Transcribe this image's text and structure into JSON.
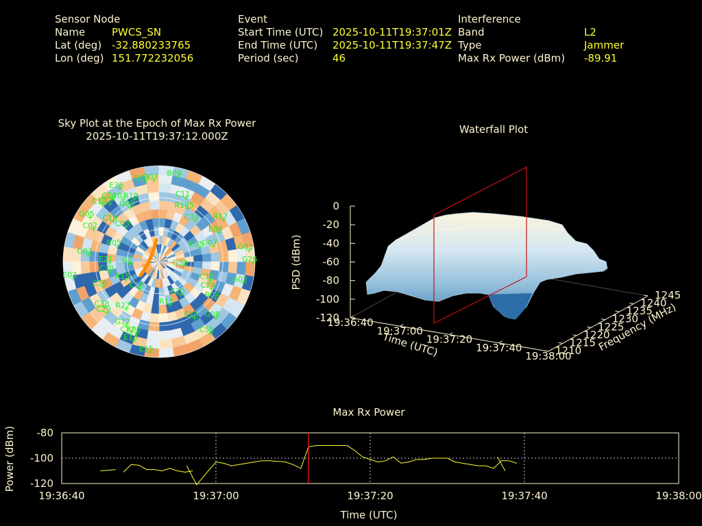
{
  "header": {
    "sensor": {
      "heading": "Sensor Node",
      "rows": [
        {
          "label": "Name",
          "value": "PWCS_SN"
        },
        {
          "label": "Lat (deg)",
          "value": "-32.880233765"
        },
        {
          "label": "Lon (deg)",
          "value": "151.772232056"
        }
      ]
    },
    "event": {
      "heading": "Event",
      "rows": [
        {
          "label": "Start Time (UTC)",
          "value": "2025-10-11T19:37:01Z"
        },
        {
          "label": "End Time (UTC)",
          "value": "2025-10-11T19:37:47Z"
        },
        {
          "label": "Period (sec)",
          "value": "46"
        }
      ]
    },
    "interference": {
      "heading": "Interference",
      "rows": [
        {
          "label": "Band",
          "value": "L2"
        },
        {
          "label": "Type",
          "value": "Jammer"
        },
        {
          "label": "Max Rx Power (dBm)",
          "value": "-89.91"
        }
      ]
    }
  },
  "chart_data": [
    {
      "type": "scatter",
      "title": "Sky Plot at the Epoch of Max Rx Power",
      "subtitle": "2025-10-11T19:37:12.000Z",
      "satellites": [
        {
          "name": "E36",
          "az": -30,
          "el": 10
        },
        {
          "name": "D03",
          "az": -12,
          "el": 12
        },
        {
          "name": "G03",
          "az": -6,
          "el": 12
        },
        {
          "name": "B09",
          "az": 10,
          "el": 8
        },
        {
          "name": "C10",
          "az": -46,
          "el": 12
        },
        {
          "name": "C04",
          "az": -38,
          "el": 14
        },
        {
          "name": "C07",
          "az": -42,
          "el": 16
        },
        {
          "name": "C01",
          "az": -32,
          "el": 20
        },
        {
          "name": "R19",
          "az": -24,
          "el": 25
        },
        {
          "name": "G09",
          "az": -30,
          "el": 30
        },
        {
          "name": "C11",
          "az": 20,
          "el": 25
        },
        {
          "name": "R195",
          "az": 25,
          "el": 34
        },
        {
          "name": "C34",
          "az": 38,
          "el": 40
        },
        {
          "name": "G05",
          "az": -58,
          "el": 10
        },
        {
          "name": "C03",
          "az": -46,
          "el": 42
        },
        {
          "name": "C19",
          "az": -50,
          "el": 30
        },
        {
          "name": "R17",
          "az": 55,
          "el": 20
        },
        {
          "name": "E04",
          "az": 62,
          "el": 30
        },
        {
          "name": "C02",
          "az": -64,
          "el": 18
        },
        {
          "name": "R05",
          "az": -70,
          "el": 45
        },
        {
          "name": "E05",
          "az": 68,
          "el": 52
        },
        {
          "name": "G07",
          "az": 72,
          "el": 40
        },
        {
          "name": "G01",
          "az": 82,
          "el": 8
        },
        {
          "name": "G03",
          "az": -84,
          "el": 20
        },
        {
          "name": "E21",
          "az": -90,
          "el": 40
        },
        {
          "name": "G26",
          "az": 90,
          "el": 5
        },
        {
          "name": "G2",
          "az": -92,
          "el": 60
        },
        {
          "name": "C30",
          "az": -100,
          "el": 40
        },
        {
          "name": "C15",
          "az": 110,
          "el": 42
        },
        {
          "name": "G30",
          "az": 100,
          "el": 70
        },
        {
          "name": "E03",
          "az": -100,
          "el": 5
        },
        {
          "name": "G02",
          "az": 104,
          "el": 12
        },
        {
          "name": "C36",
          "az": -112,
          "el": 30
        },
        {
          "name": "C24",
          "az": 118,
          "el": 38
        },
        {
          "name": "R15",
          "az": -115,
          "el": 52
        },
        {
          "name": "C16",
          "az": -140,
          "el": 58
        },
        {
          "name": "R04",
          "az": 124,
          "el": 30
        },
        {
          "name": "C38",
          "az": -128,
          "el": 22
        },
        {
          "name": "C29",
          "az": -132,
          "el": 20
        },
        {
          "name": "R27",
          "az": -142,
          "el": 35
        },
        {
          "name": "R15",
          "az": 170,
          "el": 50
        },
        {
          "name": "E10",
          "az": 150,
          "el": 55
        },
        {
          "name": "G12",
          "az": -150,
          "el": 22
        },
        {
          "name": "R06",
          "az": -160,
          "el": 20
        },
        {
          "name": "E23",
          "az": 150,
          "el": 30
        },
        {
          "name": "G08",
          "az": 136,
          "el": 18
        },
        {
          "name": "C32",
          "az": -156,
          "el": 18
        },
        {
          "name": "C55",
          "az": 146,
          "el": 10
        },
        {
          "name": "E13",
          "az": -160,
          "el": 12
        },
        {
          "name": "E15",
          "az": -172,
          "el": 5
        }
      ]
    },
    {
      "type": "heatmap",
      "title": "Waterfall Plot",
      "xlabel": "Time (UTC)",
      "ylabel": "Frequency (MHz)",
      "zlabel": "PSD (dBm)",
      "x_ticks": [
        "19:36:40",
        "19:37:00",
        "19:37:20",
        "19:37:40",
        "19:38:00"
      ],
      "y_ticks": [
        1210,
        1215,
        1220,
        1225,
        1230,
        1235,
        1240,
        1245
      ],
      "z_ticks": [
        0,
        -20,
        -40,
        -60,
        -80,
        -100,
        -120
      ],
      "zlim": [
        -120,
        0
      ],
      "marker_time": "19:37:12"
    },
    {
      "type": "line",
      "title": "Max Rx Power",
      "xlabel": "Time (UTC)",
      "ylabel": "Power (dBm)",
      "x_ticks": [
        "19:36:40",
        "19:37:00",
        "19:37:20",
        "19:37:40",
        "19:38:00"
      ],
      "y_ticks": [
        -80,
        -100,
        -120
      ],
      "xlim": [
        0,
        80
      ],
      "ylim": [
        -120,
        -80
      ],
      "marker_x": 32,
      "series": [
        {
          "x": [
            5,
            6,
            7
          ],
          "y": [
            -110,
            -109.5,
            -109
          ]
        },
        {
          "x": [
            8,
            9,
            10,
            11,
            12,
            13,
            14,
            14.5,
            15,
            16,
            17
          ],
          "y": [
            -111,
            -105,
            -105.5,
            -109,
            -109,
            -110,
            -108,
            -109,
            -110,
            -111,
            -110
          ]
        },
        {
          "x": [
            16.2,
            17.5,
            19,
            20,
            21,
            22,
            23,
            24,
            25,
            26,
            27,
            28,
            29,
            30,
            31,
            32,
            33,
            34,
            35,
            36,
            37,
            38,
            39,
            40,
            41,
            42,
            43,
            44,
            45,
            46,
            47,
            48,
            49,
            50,
            51,
            52,
            53,
            54,
            55,
            56,
            57,
            58,
            59
          ],
          "y": [
            -106,
            -121,
            -110,
            -103,
            -104,
            -106,
            -105,
            -104,
            -103,
            -102,
            -102,
            -102.5,
            -103,
            -105,
            -108,
            -91,
            -90,
            -90,
            -90,
            -90,
            -90,
            -94,
            -99,
            -101,
            -103,
            -102,
            -99,
            -104,
            -103,
            -101,
            -101,
            -100,
            -100,
            -100,
            -103,
            -104,
            -105,
            -106,
            -106,
            -108,
            -102,
            -102,
            -104
          ]
        },
        {
          "x": [
            56.5,
            57.5
          ],
          "y": [
            -99,
            -110
          ]
        }
      ]
    }
  ]
}
